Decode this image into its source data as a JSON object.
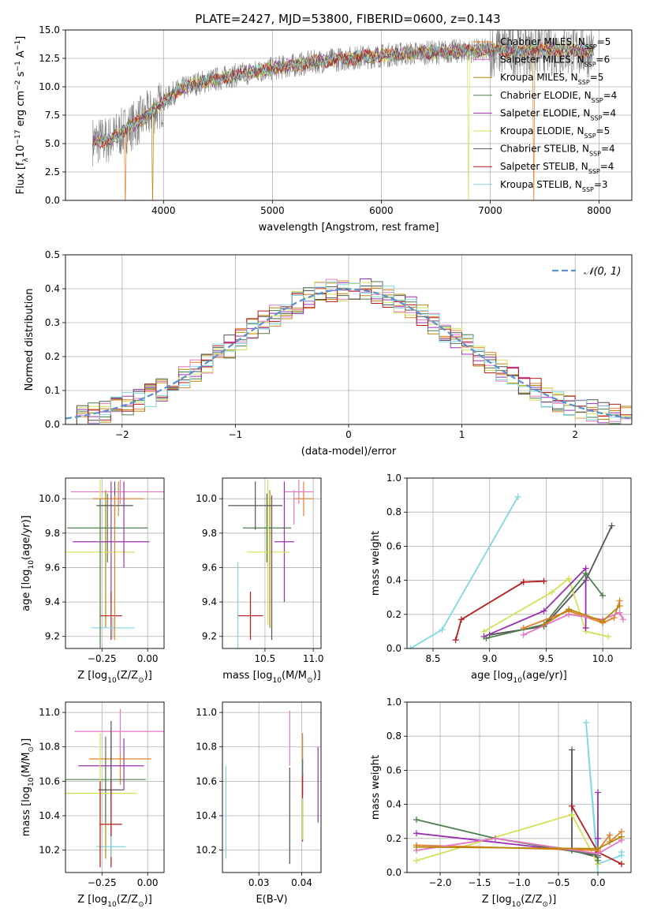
{
  "title": "PLATE=2427, MJD=53800, FIBERID=0600, z=0.143",
  "colors": {
    "grid": "#b0b0b0",
    "fit_series": [
      "#e1812c",
      "#e377c2",
      "#b8860b",
      "#4e7d4e",
      "#9b30b0",
      "#d4e157",
      "#555555",
      "#b71c1c",
      "#80d8e0"
    ],
    "data_gray": "#808080",
    "normal": "#5a8fd0"
  },
  "chart_data": [
    {
      "id": "spectrum",
      "type": "line",
      "xlabel": "wavelength [Angstrom, rest frame]",
      "ylabel": "Flux [f$_\\lambda$10$^{-17}$ erg cm$^{-2}$ s$^{-1}$ A$^{-1}$]",
      "xlim": [
        3100,
        8300
      ],
      "ylim": [
        0,
        15
      ],
      "xticks": [
        4000,
        5000,
        6000,
        7000,
        8000
      ],
      "yticks": [
        0.0,
        2.5,
        5.0,
        7.5,
        10.0,
        12.5,
        15.0
      ],
      "ytick_labels": [
        "0.0",
        "2.5",
        "5.0",
        "7.5",
        "10.0",
        "12.5",
        "15.0"
      ],
      "legend_position": "top-right",
      "series": [
        {
          "name": "Chabrier MILES, N$_{SSP}$=5",
          "name_main": "Chabrier MILES, N",
          "name_sub": "SSP",
          "name_tail": "=5"
        },
        {
          "name": "Salpeter MILES, N$_{SSP}$=6",
          "name_main": "Salpeter MILES, N",
          "name_sub": "SSP",
          "name_tail": "=6"
        },
        {
          "name": "Kroupa MILES, N$_{SSP}$=5",
          "name_main": "Kroupa MILES, N",
          "name_sub": "SSP",
          "name_tail": "=5"
        },
        {
          "name": "Chabrier ELODIE, N$_{SSP}$=4",
          "name_main": "Chabrier ELODIE, N",
          "name_sub": "SSP",
          "name_tail": "=4"
        },
        {
          "name": "Salpeter ELODIE, N$_{SSP}$=4",
          "name_main": "Salpeter ELODIE, N",
          "name_sub": "SSP",
          "name_tail": "=4"
        },
        {
          "name": "Kroupa ELODIE, N$_{SSP}$=5",
          "name_main": "Kroupa ELODIE, N",
          "name_sub": "SSP",
          "name_tail": "=5"
        },
        {
          "name": "Chabrier STELIB, N$_{SSP}$=4",
          "name_main": "Chabrier STELIB, N",
          "name_sub": "SSP",
          "name_tail": "=4"
        },
        {
          "name": "Salpeter STELIB, N$_{SSP}$=4",
          "name_main": "Salpeter STELIB, N",
          "name_sub": "SSP",
          "name_tail": "=4"
        },
        {
          "name": "Kroupa STELIB, N$_{SSP}$=3",
          "name_main": "Kroupa STELIB, N",
          "name_sub": "SSP",
          "name_tail": "=3"
        }
      ],
      "continuum": {
        "x": [
          3350,
          3500,
          3700,
          3900,
          4100,
          4300,
          4600,
          5000,
          5400,
          5800,
          6200,
          6600,
          7000,
          7400,
          7800,
          8000
        ],
        "y": [
          5.2,
          5.3,
          6.5,
          7.8,
          9.5,
          10.3,
          10.9,
          11.6,
          12.2,
          12.6,
          12.9,
          13.1,
          13.2,
          13.3,
          13.2,
          13.1
        ]
      },
      "dropouts": [
        {
          "x": 3650,
          "series": 0
        },
        {
          "x": 3900,
          "series": 2
        },
        {
          "x": 6800,
          "series": 5
        },
        {
          "x": 7400,
          "series": 0
        }
      ]
    },
    {
      "id": "residuals",
      "type": "line",
      "xlabel": "(data-model)/error",
      "ylabel": "Normed distribution",
      "xlim": [
        -2.5,
        2.5
      ],
      "ylim": [
        0,
        0.5
      ],
      "xticks": [
        -2,
        -1,
        0,
        1,
        2
      ],
      "xtick_labels": [
        "−2",
        "−1",
        "0",
        "1",
        "2"
      ],
      "yticks": [
        0.0,
        0.1,
        0.2,
        0.3,
        0.4,
        0.5
      ],
      "ytick_labels": [
        "0.0",
        "0.1",
        "0.2",
        "0.3",
        "0.4",
        "0.5"
      ],
      "legend": "$\\mathcal{N}(0,1)$",
      "legend_text": "𝒩(0, 1)",
      "legend_position": "top-right",
      "normal": {
        "mu": 0,
        "sigma": 1
      },
      "bin_width": 0.1
    },
    {
      "id": "age_vs_Z",
      "type": "scatter",
      "xlabel": "Z [log$_{10}$(Z/Z$_\\odot$)]",
      "ylabel": "age  [log$_{10}$(age/yr)]",
      "xlim": [
        -0.45,
        0.09
      ],
      "ylim": [
        9.13,
        10.12
      ],
      "xticks": [
        -0.25,
        0.0
      ],
      "xtick_labels": [
        "−0.25",
        "0.00"
      ],
      "yticks": [
        9.2,
        9.4,
        9.6,
        9.8,
        10.0
      ],
      "ytick_labels": [
        "9.2",
        "9.4",
        "9.6",
        "9.8",
        "10.0"
      ],
      "points": [
        {
          "s": 0,
          "x": -0.16,
          "xerr": 0.14,
          "y": 10.0,
          "yerr": 0.1
        },
        {
          "s": 1,
          "x": -0.15,
          "xerr": 0.27,
          "y": 10.04,
          "yerr": 0.07
        },
        {
          "s": 2,
          "x": -0.23,
          "xerr": 0.0,
          "y": 9.65,
          "yerr": 0.4
        },
        {
          "s": 3,
          "x": -0.22,
          "xerr": 0.22,
          "y": 9.83,
          "yerr": 0.2
        },
        {
          "s": 4,
          "x": -0.2,
          "xerr": 0.21,
          "y": 9.75,
          "yerr": 0.35
        },
        {
          "s": 5,
          "x": -0.26,
          "xerr": 0.19,
          "y": 9.69,
          "yerr": 0.42
        },
        {
          "s": 6,
          "x": -0.18,
          "xerr": 0.1,
          "y": 9.96,
          "yerr": 0.14
        },
        {
          "s": 7,
          "x": -0.2,
          "xerr": 0.06,
          "y": 9.32,
          "yerr": 0.14
        },
        {
          "s": 8,
          "x": -0.19,
          "xerr": 0.12,
          "y": 9.25,
          "yerr": 0.06
        },
        {
          "s": 0,
          "x": -0.18,
          "xerr": 0.0,
          "y": 9.6,
          "yerr": 0.42
        },
        {
          "s": 3,
          "x": -0.26,
          "xerr": 0.0,
          "y": 9.55,
          "yerr": 0.45
        },
        {
          "s": 4,
          "x": -0.13,
          "xerr": 0.0,
          "y": 9.85,
          "yerr": 0.25
        }
      ]
    },
    {
      "id": "age_vs_mass",
      "type": "scatter",
      "xlabel": "mass [log$_{10}$(M/M$_\\odot$)]",
      "ylabel": "",
      "xlim": [
        10.06,
        11.08
      ],
      "ylim": [
        9.13,
        10.12
      ],
      "xticks": [
        10.5,
        11.0
      ],
      "xtick_labels": [
        "10.5",
        "11.0"
      ],
      "yticks": [
        9.2,
        9.4,
        9.6,
        9.8,
        10.0
      ],
      "ytick_labels": [
        "9.2",
        "9.4",
        "9.6",
        "9.8",
        "10.0"
      ],
      "points": [
        {
          "s": 0,
          "x": 10.9,
          "xerr": 0.1,
          "y": 10.0,
          "yerr": 0.1
        },
        {
          "s": 1,
          "x": 10.85,
          "xerr": 0.15,
          "y": 10.04,
          "yerr": 0.07
        },
        {
          "s": 2,
          "x": 10.55,
          "xerr": 0.0,
          "y": 9.65,
          "yerr": 0.4
        },
        {
          "s": 3,
          "x": 10.52,
          "xerr": 0.25,
          "y": 9.83,
          "yerr": 0.2
        },
        {
          "s": 4,
          "x": 10.7,
          "xerr": 0.1,
          "y": 9.75,
          "yerr": 0.35
        },
        {
          "s": 5,
          "x": 10.53,
          "xerr": 0.22,
          "y": 9.69,
          "yerr": 0.42
        },
        {
          "s": 6,
          "x": 10.4,
          "xerr": 0.28,
          "y": 9.96,
          "yerr": 0.14
        },
        {
          "s": 7,
          "x": 10.35,
          "xerr": 0.13,
          "y": 9.32,
          "yerr": 0.14
        },
        {
          "s": 8,
          "x": 10.22,
          "xerr": 0.0,
          "y": 9.25,
          "yerr": 0.38
        },
        {
          "s": 6,
          "x": 10.57,
          "xerr": 0.0,
          "y": 9.6,
          "yerr": 0.42
        },
        {
          "s": 1,
          "x": 10.8,
          "xerr": 0.0,
          "y": 9.95,
          "yerr": 0.1
        }
      ]
    },
    {
      "id": "weight_vs_age",
      "type": "line",
      "xlabel": "age  [log$_{10}$(age/yr)]",
      "ylabel": "mass weight",
      "xlim": [
        8.27,
        10.25
      ],
      "ylim": [
        0,
        1
      ],
      "xticks": [
        8.5,
        9.0,
        9.5,
        10.0
      ],
      "xtick_labels": [
        "8.5",
        "9.0",
        "9.5",
        "10.0"
      ],
      "yticks": [
        0.0,
        0.2,
        0.4,
        0.6,
        0.8,
        1.0
      ],
      "ytick_labels": [
        "0.0",
        "0.2",
        "0.4",
        "0.6",
        "0.8",
        "1.0"
      ],
      "series": [
        {
          "s": 8,
          "x": [
            8.3,
            8.58,
            9.25
          ],
          "y": [
            0.0,
            0.11,
            0.89
          ]
        },
        {
          "s": 6,
          "x": [
            9.0,
            9.48,
            9.85,
            10.08
          ],
          "y": [
            0.08,
            0.13,
            0.4,
            0.72
          ]
        },
        {
          "s": 7,
          "x": [
            8.7,
            8.75,
            9.3,
            9.48
          ],
          "y": [
            0.05,
            0.17,
            0.39,
            0.395
          ]
        },
        {
          "s": 5,
          "x": [
            8.95,
            9.55,
            9.7,
            9.85,
            10.05
          ],
          "y": [
            0.1,
            0.33,
            0.41,
            0.1,
            0.07
          ]
        },
        {
          "s": 4,
          "x": [
            8.95,
            9.48,
            9.85,
            9.85
          ],
          "y": [
            0.07,
            0.22,
            0.47,
            0.12
          ]
        },
        {
          "s": 3,
          "x": [
            8.97,
            9.48,
            9.85,
            10.0
          ],
          "y": [
            0.06,
            0.14,
            0.44,
            0.31
          ]
        },
        {
          "s": 0,
          "x": [
            9.3,
            9.7,
            10.0,
            10.1,
            10.15
          ],
          "y": [
            0.12,
            0.22,
            0.15,
            0.18,
            0.28
          ]
        },
        {
          "s": 1,
          "x": [
            9.3,
            9.7,
            10.0,
            10.15,
            10.18
          ],
          "y": [
            0.08,
            0.2,
            0.17,
            0.21,
            0.17
          ]
        },
        {
          "s": 2,
          "x": [
            9.48,
            9.7,
            10.0,
            10.15
          ],
          "y": [
            0.14,
            0.23,
            0.16,
            0.25
          ]
        }
      ]
    },
    {
      "id": "mass_vs_Z",
      "type": "scatter",
      "xlabel": "Z [log$_{10}$(Z/Z$_\\odot$)]",
      "ylabel": "mass [log$_{10}$(M/M$_\\odot$)]",
      "xlim": [
        -0.45,
        0.09
      ],
      "ylim": [
        10.07,
        11.06
      ],
      "xticks": [
        -0.25,
        0.0
      ],
      "xtick_labels": [
        "−0.25",
        "0.00"
      ],
      "yticks": [
        10.2,
        10.4,
        10.6,
        10.8,
        11.0
      ],
      "ytick_labels": [
        "10.2",
        "10.4",
        "10.6",
        "10.8",
        "11.0"
      ],
      "points": [
        {
          "s": 0,
          "x": -0.15,
          "xerr": 0.17,
          "y": 10.73,
          "yerr": 0.15
        },
        {
          "s": 1,
          "x": -0.15,
          "xerr": 0.25,
          "y": 10.89,
          "yerr": 0.13
        },
        {
          "s": 2,
          "x": -0.23,
          "xerr": 0.0,
          "y": 10.45,
          "yerr": 0.3
        },
        {
          "s": 3,
          "x": -0.23,
          "xerr": 0.22,
          "y": 10.61,
          "yerr": 0.25
        },
        {
          "s": 4,
          "x": -0.2,
          "xerr": 0.18,
          "y": 10.69,
          "yerr": 0.2
        },
        {
          "s": 5,
          "x": -0.26,
          "xerr": 0.2,
          "y": 10.53,
          "yerr": 0.35
        },
        {
          "s": 6,
          "x": -0.2,
          "xerr": 0.07,
          "y": 10.55,
          "yerr": 0.4
        },
        {
          "s": 7,
          "x": -0.2,
          "xerr": 0.06,
          "y": 10.35,
          "yerr": 0.25
        },
        {
          "s": 8,
          "x": -0.2,
          "xerr": 0.08,
          "y": 10.22,
          "yerr": 0.06
        },
        {
          "s": 7,
          "x": -0.26,
          "xerr": 0.0,
          "y": 10.35,
          "yerr": 0.25
        },
        {
          "s": 4,
          "x": -0.13,
          "xerr": 0.0,
          "y": 10.7,
          "yerr": 0.15
        }
      ]
    },
    {
      "id": "mass_vs_ebv",
      "type": "scatter",
      "xlabel": "E(B-V)",
      "ylabel": "",
      "xlim": [
        0.0215,
        0.0445
      ],
      "ylim": [
        10.07,
        11.06
      ],
      "xticks": [
        0.03,
        0.04
      ],
      "xtick_labels": [
        "0.03",
        "0.04"
      ],
      "yticks": [
        10.2,
        10.4,
        10.6,
        10.8,
        11.0
      ],
      "ytick_labels": [
        "10.2",
        "10.4",
        "10.6",
        "10.8",
        "11.0"
      ],
      "points": [
        {
          "s": 8,
          "x": 0.0223,
          "xerr": 0.0,
          "y": 10.42,
          "yerr": 0.27
        },
        {
          "s": 6,
          "x": 0.0372,
          "xerr": 0.0,
          "y": 10.4,
          "yerr": 0.28
        },
        {
          "s": 1,
          "x": 0.0372,
          "xerr": 0.0,
          "y": 10.85,
          "yerr": 0.16
        },
        {
          "s": 0,
          "x": 0.0402,
          "xerr": 0.0,
          "y": 10.7,
          "yerr": 0.18
        },
        {
          "s": 7,
          "x": 0.0402,
          "xerr": 0.0,
          "y": 10.45,
          "yerr": 0.2
        },
        {
          "s": 5,
          "x": 0.0402,
          "xerr": 0.0,
          "y": 10.38,
          "yerr": 0.12
        },
        {
          "s": 4,
          "x": 0.0438,
          "xerr": 0.0,
          "y": 10.58,
          "yerr": 0.22
        },
        {
          "s": 3,
          "x": 0.0402,
          "xerr": 0.0,
          "y": 10.68,
          "yerr": 0.05
        }
      ]
    },
    {
      "id": "weight_vs_Z",
      "type": "line",
      "xlabel": "Z [log$_{10}$(Z/Z$_\\odot$)]",
      "ylabel": "mass weight",
      "xlim": [
        -2.42,
        0.42
      ],
      "ylim": [
        0,
        1
      ],
      "xticks": [
        -2.0,
        -1.5,
        -1.0,
        -0.5,
        0.0
      ],
      "xtick_labels": [
        "−2.0",
        "−1.5",
        "−1.0",
        "−0.5",
        "0.0"
      ],
      "yticks": [
        0.0,
        0.2,
        0.4,
        0.6,
        0.8,
        1.0
      ],
      "ytick_labels": [
        "0.0",
        "0.2",
        "0.4",
        "0.6",
        "0.8",
        "1.0"
      ],
      "series": [
        {
          "s": 8,
          "x": [
            0.0,
            -0.15,
            0.0,
            0.3,
            0.3
          ],
          "y": [
            0.0,
            0.88,
            0.05,
            0.1,
            0.12
          ]
        },
        {
          "s": 6,
          "x": [
            -0.33,
            -0.33,
            0.0,
            0.0
          ],
          "y": [
            0.72,
            0.13,
            0.09,
            0.05
          ]
        },
        {
          "s": 7,
          "x": [
            -0.33,
            0.0,
            0.3
          ],
          "y": [
            0.39,
            0.12,
            0.05
          ]
        },
        {
          "s": 5,
          "x": [
            -2.3,
            -0.33,
            0.0
          ],
          "y": [
            0.07,
            0.34,
            0.05
          ]
        },
        {
          "s": 4,
          "x": [
            -2.3,
            0.0,
            0.0,
            0.0
          ],
          "y": [
            0.23,
            0.11,
            0.47,
            0.2
          ]
        },
        {
          "s": 3,
          "x": [
            -2.3,
            -1.3,
            0.0,
            0.0
          ],
          "y": [
            0.31,
            0.2,
            0.1,
            0.07
          ]
        },
        {
          "s": 0,
          "x": [
            -2.3,
            0.0,
            0.15,
            0.15,
            0.3
          ],
          "y": [
            0.16,
            0.13,
            0.22,
            0.18,
            0.24
          ]
        },
        {
          "s": 1,
          "x": [
            -2.3,
            -1.3,
            0.0,
            0.3
          ],
          "y": [
            0.13,
            0.2,
            0.11,
            0.19
          ]
        },
        {
          "s": 2,
          "x": [
            -2.3,
            0.0,
            0.3
          ],
          "y": [
            0.15,
            0.14,
            0.21
          ]
        }
      ]
    }
  ]
}
